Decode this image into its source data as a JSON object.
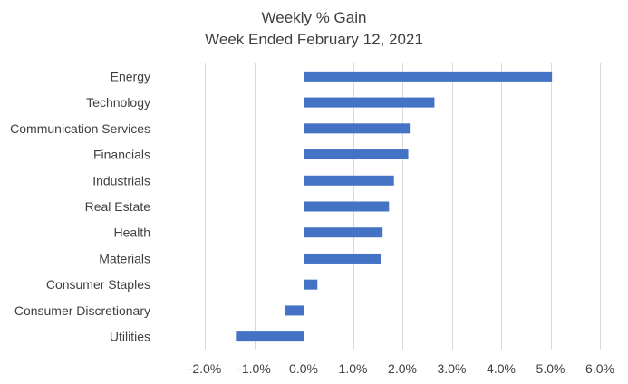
{
  "chart_data": {
    "type": "bar",
    "orientation": "horizontal",
    "title": "Weekly % Gain",
    "subtitle": "Week Ended February 12, 2021",
    "xlabel": "",
    "ylabel": "",
    "categories": [
      "Energy",
      "Technology",
      "Communication Services",
      "Financials",
      "Industrials",
      "Real Estate",
      "Health",
      "Materials",
      "Consumer Staples",
      "Consumer Discretionary",
      "Utilities"
    ],
    "values": [
      5.03,
      2.65,
      2.15,
      2.12,
      1.83,
      1.73,
      1.6,
      1.56,
      0.28,
      -0.38,
      -1.37
    ],
    "xlim": [
      -2.0,
      6.0
    ],
    "xticks": [
      -2.0,
      -1.0,
      0.0,
      1.0,
      2.0,
      3.0,
      4.0,
      5.0,
      6.0
    ],
    "xtick_labels": [
      "-2.0%",
      "-1.0%",
      "0.0%",
      "1.0%",
      "2.0%",
      "3.0%",
      "4.0%",
      "5.0%",
      "6.0%"
    ],
    "value_unit": "%",
    "grid": "vertical",
    "legend": "none",
    "colors": {
      "bar": "#4472C4",
      "grid": "#d9d9d9",
      "text": "#404040"
    }
  }
}
